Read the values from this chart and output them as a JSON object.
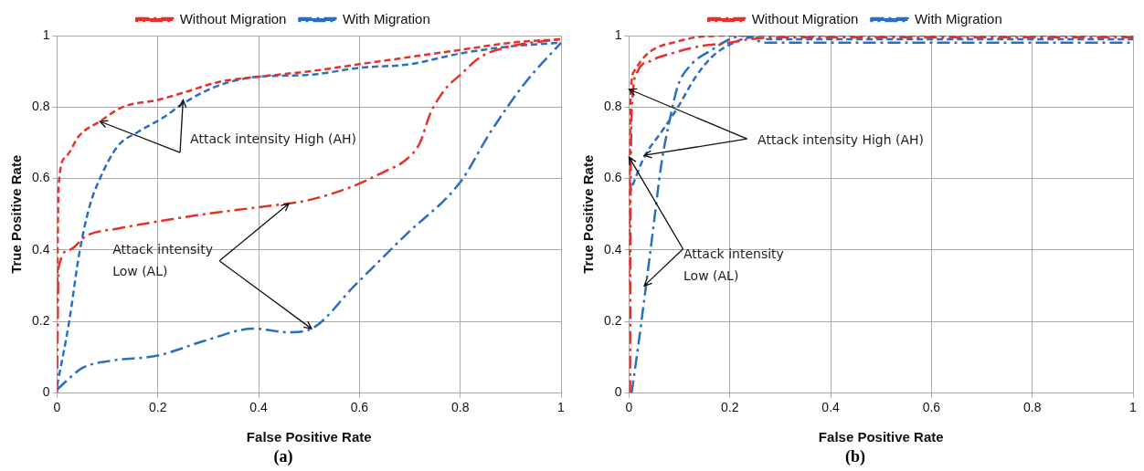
{
  "chart_data": [
    {
      "type": "line",
      "title": "(a)",
      "xlabel": "False Positive Rate",
      "ylabel": "True Positive Rate",
      "xlim": [
        0,
        1
      ],
      "ylim": [
        0,
        1
      ],
      "xticks": [
        0,
        0.2,
        0.4,
        0.6,
        0.8,
        1
      ],
      "yticks": [
        0,
        0.2,
        0.4,
        0.6,
        0.8,
        1
      ],
      "grid": true,
      "legend": "top",
      "marker": "none",
      "annotations": [
        {
          "text": "Attack intensity High (AH)",
          "x": 0.085,
          "y": 0.76
        },
        {
          "text": "Attack intensity\nLow (AL)",
          "x": 0.46,
          "y": 0.53
        }
      ],
      "series": [
        {
          "name": "Without Migration",
          "color": "#e8302a",
          "line_style": "dashdot",
          "x": [
            0,
            0.003,
            0.024,
            0.058,
            0.12,
            0.2,
            0.29,
            0.4,
            0.5,
            0.59,
            0.65,
            0.69,
            0.72,
            0.74,
            0.77,
            0.8,
            0.84,
            0.9,
            1
          ],
          "values": [
            0,
            0.35,
            0.4,
            0.44,
            0.46,
            0.48,
            0.5,
            0.52,
            0.54,
            0.58,
            0.62,
            0.65,
            0.7,
            0.78,
            0.85,
            0.89,
            0.94,
            0.97,
            0.99
          ]
        },
        {
          "name": "With Migration",
          "color": "#2a6fc4",
          "line_style": "dashdot",
          "x": [
            0,
            0.05,
            0.105,
            0.2,
            0.29,
            0.39,
            0.46,
            0.505,
            0.59,
            0.69,
            0.8,
            0.86,
            0.93,
            1
          ],
          "values": [
            0.01,
            0.07,
            0.09,
            0.105,
            0.145,
            0.18,
            0.17,
            0.18,
            0.3,
            0.44,
            0.59,
            0.73,
            0.87,
            0.98
          ]
        },
        {
          "color": "#e8302a",
          "line_style": "dashed",
          "x": [
            0,
            0.003,
            0.017,
            0.044,
            0.085,
            0.13,
            0.2,
            0.25,
            0.32,
            0.4,
            0.5,
            0.6,
            0.7,
            0.8,
            0.9,
            1
          ],
          "values": [
            0.25,
            0.58,
            0.66,
            0.72,
            0.76,
            0.8,
            0.82,
            0.84,
            0.87,
            0.885,
            0.9,
            0.92,
            0.94,
            0.96,
            0.98,
            0.99
          ]
        },
        {
          "color": "#2a6fc4",
          "line_style": "dashed",
          "x": [
            0,
            0.024,
            0.044,
            0.064,
            0.085,
            0.12,
            0.16,
            0.21,
            0.25,
            0.32,
            0.4,
            0.5,
            0.6,
            0.7,
            0.8,
            0.9,
            1
          ],
          "values": [
            0.02,
            0.2,
            0.39,
            0.52,
            0.6,
            0.69,
            0.73,
            0.77,
            0.81,
            0.86,
            0.885,
            0.89,
            0.91,
            0.92,
            0.95,
            0.97,
            0.98
          ]
        }
      ]
    },
    {
      "type": "line",
      "title": "(b)",
      "xlabel": "False Positive Rate",
      "ylabel": "True Positive Rate",
      "xlim": [
        0,
        1
      ],
      "ylim": [
        0,
        1
      ],
      "xticks": [
        0,
        0.2,
        0.4,
        0.6,
        0.8,
        1
      ],
      "yticks": [
        0,
        0.2,
        0.4,
        0.6,
        0.8,
        1
      ],
      "grid": true,
      "legend": "top",
      "marker": "none",
      "annotations": [
        {
          "text": "Attack intensity High (AH)",
          "x": 0.0,
          "y": 0.85
        },
        {
          "text": "Attack intensity\nLow (AL)",
          "x": 0.03,
          "y": 0.3
        }
      ],
      "series": [
        {
          "name": "Without Migration",
          "color": "#e8302a",
          "line_style": "dashdot",
          "x": [
            0.002,
            0.003,
            0.007,
            0.017,
            0.044,
            0.084,
            0.14,
            0.2,
            0.24,
            0.3,
            1
          ],
          "values": [
            0,
            0.55,
            0.83,
            0.9,
            0.93,
            0.95,
            0.97,
            0.98,
            0.99,
            0.995,
            0.995
          ]
        },
        {
          "name": "With Migration",
          "color": "#2a6fc4",
          "line_style": "dashdot",
          "x": [
            0.005,
            0.017,
            0.03,
            0.047,
            0.064,
            0.08,
            0.097,
            0.124,
            0.164,
            0.2,
            0.23,
            0.27,
            1
          ],
          "values": [
            0,
            0.12,
            0.26,
            0.45,
            0.64,
            0.76,
            0.86,
            0.92,
            0.96,
            0.99,
            1,
            0.98,
            0.98
          ]
        },
        {
          "color": "#e8302a",
          "line_style": "dashed",
          "x": [
            0,
            0.001,
            0.003,
            0.01,
            0.037,
            0.1,
            0.15,
            0.2,
            1
          ],
          "values": [
            0.3,
            0.55,
            0.83,
            0.9,
            0.95,
            0.985,
            0.998,
            1,
            1
          ]
        },
        {
          "color": "#2a6fc4",
          "line_style": "dashed",
          "x": [
            0,
            0.03,
            0.064,
            0.097,
            0.13,
            0.164,
            0.2,
            0.245,
            0.28,
            0.37,
            1
          ],
          "values": [
            0.555,
            0.66,
            0.73,
            0.8,
            0.88,
            0.94,
            0.975,
            0.995,
            0.99,
            0.99,
            0.99
          ]
        }
      ]
    }
  ]
}
